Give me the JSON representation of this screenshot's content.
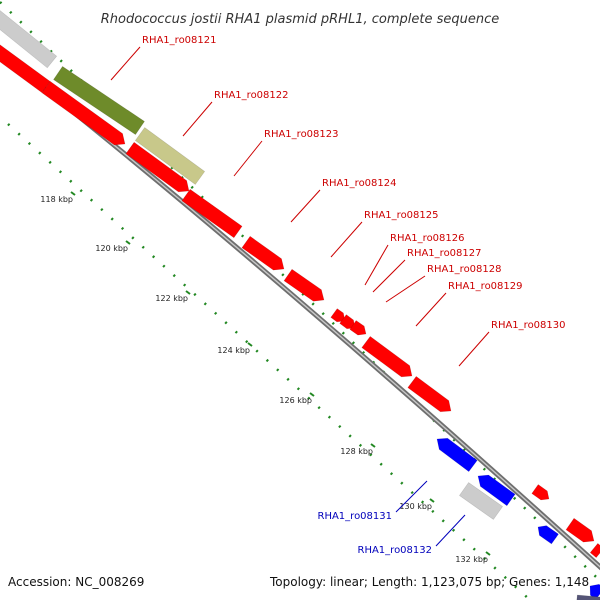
{
  "title": "Rhodococcus jostii RHA1 plasmid pRHL1, complete sequence",
  "footer": {
    "accession": "Accession: NC_008269",
    "summary": "Topology: linear; Length: 1,123,075 bp; Genes: 1,148"
  },
  "colors": {
    "forward_gene": "#ff0000",
    "reverse_gene": "#0000ff",
    "label_forward": "#cc0000",
    "label_reverse": "#0000bb",
    "backbone": "#888888",
    "ticks": "#228822",
    "olive_feature": "#6e8b2a",
    "khaki_feature": "#c8c88a",
    "grey_feature": "#cccccc"
  },
  "ticks": [
    {
      "label": "118 kbp"
    },
    {
      "label": "120 kbp"
    },
    {
      "label": "122 kbp"
    },
    {
      "label": "124 kbp"
    },
    {
      "label": "126 kbp"
    },
    {
      "label": "128 kbp"
    },
    {
      "label": "130 kbp"
    },
    {
      "label": "132 kbp"
    }
  ],
  "gene_labels": [
    {
      "text": "RHA1_ro08121",
      "strand": "forward"
    },
    {
      "text": "RHA1_ro08122",
      "strand": "forward"
    },
    {
      "text": "RHA1_ro08123",
      "strand": "forward"
    },
    {
      "text": "RHA1_ro08124",
      "strand": "forward"
    },
    {
      "text": "RHA1_ro08125",
      "strand": "forward"
    },
    {
      "text": "RHA1_ro08126",
      "strand": "forward"
    },
    {
      "text": "RHA1_ro08127",
      "strand": "forward"
    },
    {
      "text": "RHA1_ro08128",
      "strand": "forward"
    },
    {
      "text": "RHA1_ro08129",
      "strand": "forward"
    },
    {
      "text": "RHA1_ro08130",
      "strand": "forward"
    },
    {
      "text": "RHA1_ro08131",
      "strand": "reverse"
    },
    {
      "text": "RHA1_ro08132",
      "strand": "reverse"
    }
  ]
}
